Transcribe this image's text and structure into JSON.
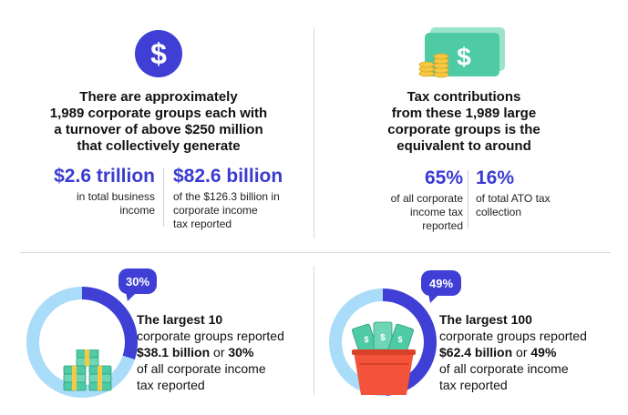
{
  "top_left": {
    "icon": "dollar-circle-icon",
    "icon_glyph": "$",
    "heading": [
      "There are approximately",
      "1,989 corporate groups each with",
      "a turnover of above $250 million",
      "that collectively generate"
    ],
    "stat1": {
      "value": "$2.6 trillion",
      "caption": [
        "in total business",
        "income"
      ]
    },
    "stat2": {
      "value": "$82.6 billion",
      "caption": [
        "of the $126.3 billion in",
        "corporate income",
        "tax reported"
      ]
    }
  },
  "top_right": {
    "icon": "cash-and-coins-icon",
    "heading": [
      "Tax contributions",
      "from these 1,989 large",
      "corporate groups is the",
      "equivalent to around"
    ],
    "stat1": {
      "value": "65%",
      "caption": [
        "of all corporate",
        "income tax",
        "reported"
      ]
    },
    "stat2": {
      "value": "16%",
      "caption": [
        "of total ATO tax",
        "collection"
      ]
    }
  },
  "bottom_left": {
    "badge": "30%",
    "share": 0.3,
    "line1": "The largest 10",
    "line2": "corporate groups reported",
    "amount": "$38.1 billion",
    "connector": " or ",
    "pct": "30%",
    "line4": "of all corporate income",
    "line5": "tax reported"
  },
  "bottom_right": {
    "badge": "49%",
    "share": 0.49,
    "line1": "The largest 100",
    "line2": "corporate groups reported",
    "amount": "$62.4 billion",
    "connector": " or ",
    "pct": "49%",
    "line4": "of all corporate income",
    "line5": "tax reported"
  },
  "colors": {
    "accent": "#3f3fd6",
    "ring_light": "#a9dcf8",
    "cash_green": "#4ecba5",
    "bucket": "#f2533a",
    "coin": "#f7c843"
  }
}
